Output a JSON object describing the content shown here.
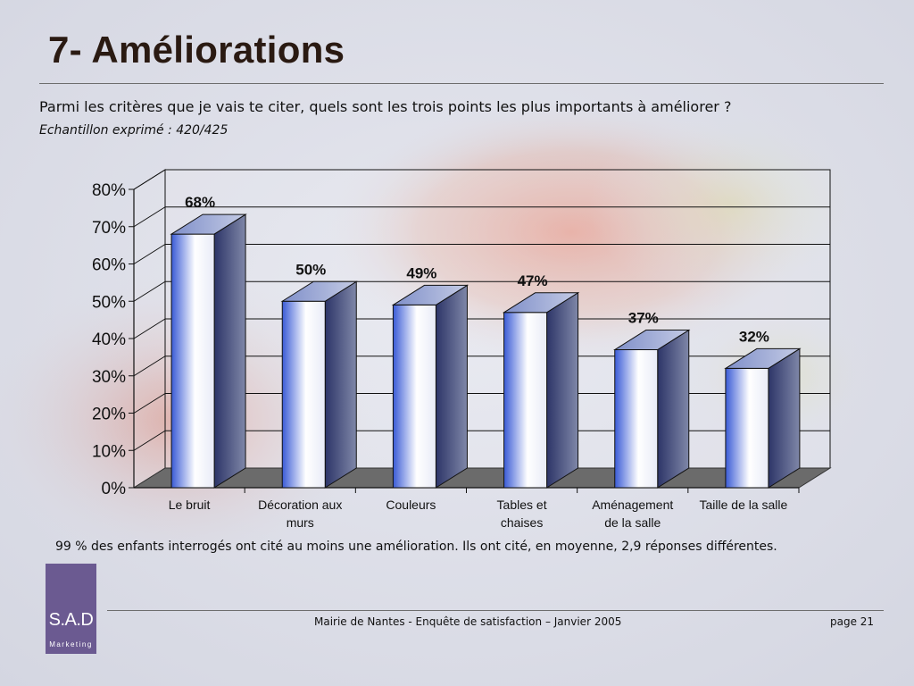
{
  "slide": {
    "title": "7- Améliorations",
    "question": "Parmi les critères que je vais te citer, quels sont les trois points les plus importants à améliorer ?",
    "sample": "Echantillon exprimé : 420/425",
    "note": "99 % des enfants interrogés ont cité au moins une amélioration. Ils ont cité, en moyenne,  2,9 réponses différentes.",
    "footer": "Mairie de Nantes - Enquête de satisfaction – Janvier 2005",
    "page": "page 21"
  },
  "logo": {
    "name": "S.A.D",
    "sub": "Marketing",
    "color": "#6b5a91"
  },
  "chart_data": {
    "type": "bar",
    "categories": [
      [
        "Le bruit"
      ],
      [
        "Décoration aux",
        "murs"
      ],
      [
        "Couleurs"
      ],
      [
        "Tables et",
        "chaises"
      ],
      [
        "Aménagement",
        "de la salle"
      ],
      [
        "Taille de la salle"
      ]
    ],
    "values": [
      68,
      50,
      49,
      47,
      37,
      32
    ],
    "data_labels": [
      "68%",
      "50%",
      "49%",
      "47%",
      "37%",
      "32%"
    ],
    "ylim": [
      0,
      80
    ],
    "yticks": [
      "0%",
      "10%",
      "20%",
      "30%",
      "40%",
      "50%",
      "60%",
      "70%",
      "80%"
    ],
    "grid": true,
    "three_d": true,
    "colors": {
      "bar_front": "#3a5bd6",
      "bar_side": "#2d3568",
      "bar_top": "#7f8fc9",
      "floor": "#6b6b6b"
    }
  }
}
